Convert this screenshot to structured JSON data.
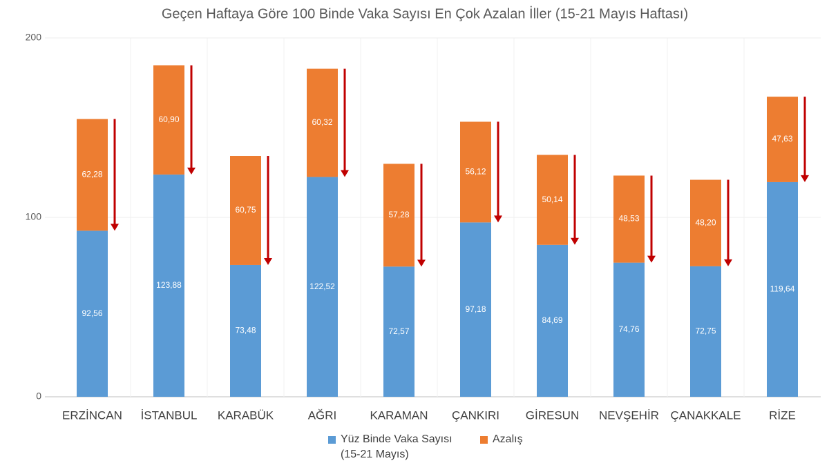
{
  "chart_data": {
    "type": "stacked_bar",
    "title": "Geçen Haftaya Göre 100 Binde Vaka Sayısı En Çok Azalan İller (15-21 Mayıs Haftası)",
    "categories": [
      "ERZİNCAN",
      "İSTANBUL",
      "KARABÜK",
      "AĞRI",
      "KARAMAN",
      "ÇANKIRI",
      "GİRESUN",
      "NEVŞEHİR",
      "ÇANAKKALE",
      "RİZE"
    ],
    "series": [
      {
        "name": "Yüz Binde Vaka Sayısı (15-21 Mayıs)",
        "color": "#5b9bd5",
        "values": [
          92.56,
          123.88,
          73.48,
          122.52,
          72.57,
          97.18,
          84.69,
          74.76,
          72.75,
          119.64
        ],
        "value_labels": [
          "92,56",
          "123,88",
          "73,48",
          "122,52",
          "72,57",
          "97,18",
          "84,69",
          "74,76",
          "72,75",
          "119,64"
        ]
      },
      {
        "name": "Azalış",
        "color": "#ed7d31",
        "values": [
          62.28,
          60.9,
          60.75,
          60.32,
          57.28,
          56.12,
          50.14,
          48.53,
          48.2,
          47.63
        ],
        "value_labels": [
          "62,28",
          "60,90",
          "60,75",
          "60,32",
          "57,28",
          "56,12",
          "50,14",
          "48,53",
          "48,20",
          "47,63"
        ]
      }
    ],
    "ylim": [
      0,
      200
    ],
    "yticks": [
      0,
      100,
      200
    ],
    "grid": true
  }
}
